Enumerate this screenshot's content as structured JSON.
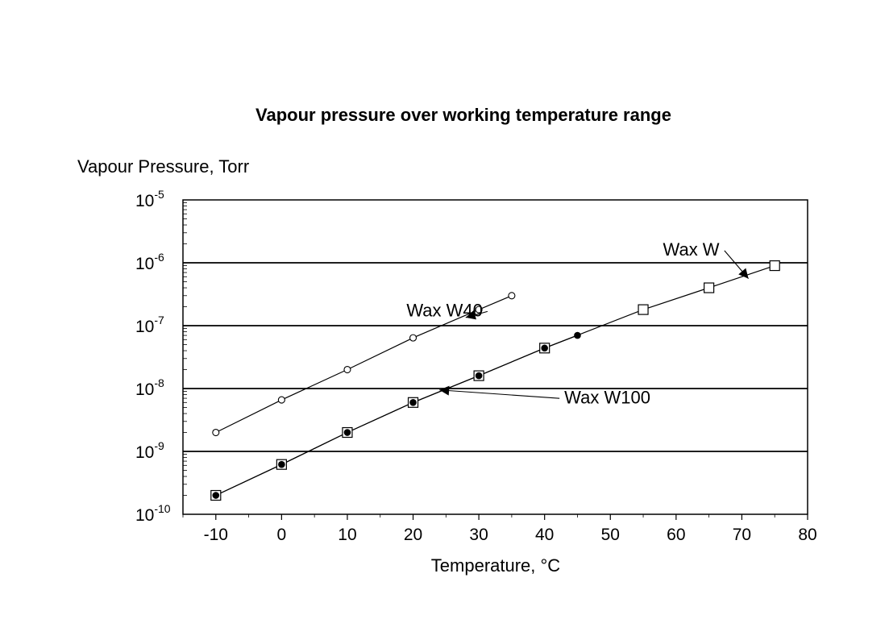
{
  "chart_data": {
    "type": "scatter",
    "title": "Vapour pressure over working temperature range",
    "xlabel": "Temperature, °C",
    "ylabel": "Vapour Pressure, Torr",
    "xlim": [
      -15,
      80
    ],
    "xticks": [
      -10,
      0,
      10,
      20,
      30,
      40,
      50,
      60,
      70,
      80
    ],
    "ylim": [
      1e-10,
      1e-05
    ],
    "yscale": "log",
    "yticks": [
      {
        "base": "10",
        "exp": "-5"
      },
      {
        "base": "10",
        "exp": "-6"
      },
      {
        "base": "10",
        "exp": "-7"
      },
      {
        "base": "10",
        "exp": "-8"
      },
      {
        "base": "10",
        "exp": "-9"
      },
      {
        "base": "10",
        "exp": "-10"
      }
    ],
    "grid": "major-y",
    "series": [
      {
        "name": "Wax W40",
        "marker": "open-circle",
        "x": [
          -10,
          0,
          10,
          20,
          30,
          35
        ],
        "y": [
          2e-09,
          6.6e-09,
          2e-08,
          6.4e-08,
          1.8e-07,
          3e-07
        ]
      },
      {
        "name": "Wax W100",
        "marker": "filled-circle",
        "x": [
          -10,
          0,
          10,
          20,
          30,
          40,
          45
        ],
        "y": [
          2e-10,
          6.2e-10,
          2e-09,
          6e-09,
          1.6e-08,
          4.4e-08,
          7e-08
        ]
      },
      {
        "name": "Wax W",
        "marker": "open-square",
        "x": [
          -10,
          0,
          10,
          20,
          30,
          40,
          55,
          65,
          75
        ],
        "y": [
          2e-10,
          6.2e-10,
          2e-09,
          6e-09,
          1.6e-08,
          4.4e-08,
          1.8e-07,
          4e-07,
          9e-07
        ]
      }
    ],
    "annotations": [
      {
        "text": "Wax W40",
        "label_at": [
          19,
          1.4e-07
        ],
        "arrow_to": [
          28,
          1.35e-07
        ]
      },
      {
        "text": "Wax W100",
        "label_at": [
          43,
          5.8e-09
        ],
        "arrow_to": [
          24,
          9.5e-09
        ]
      },
      {
        "text": "Wax W",
        "label_at": [
          58,
          1.3e-06
        ],
        "arrow_to": [
          71,
          5.6e-07
        ]
      }
    ]
  }
}
